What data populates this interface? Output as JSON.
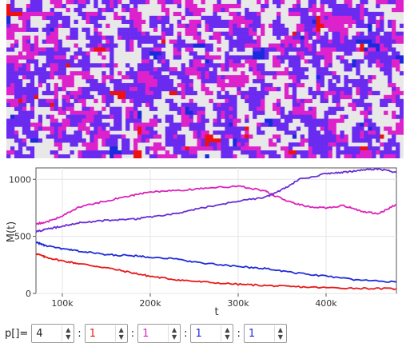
{
  "lattice": {
    "cols": 100,
    "rows": 40,
    "palette": {
      "empty": "#e8e8e8",
      "species_0": "#ee1111",
      "species_1": "#dd22cc",
      "species_2": "#1a2bdd",
      "species_3": "#6a2bf0"
    }
  },
  "chart_data": {
    "type": "line",
    "xlabel": "t",
    "ylabel": "M(t)",
    "xlim": [
      70000,
      480000
    ],
    "ylim": [
      0,
      1100
    ],
    "xticks": [
      100000,
      200000,
      300000,
      400000
    ],
    "xtick_labels": [
      "100k",
      "200k",
      "300k",
      "400k"
    ],
    "yticks": [
      0,
      500,
      1000
    ],
    "ytick_labels": [
      "0",
      "500",
      "1000"
    ],
    "grid": true,
    "series": [
      {
        "color": "#e81818",
        "x": [
          70000,
          80000,
          100000,
          120000,
          150000,
          180000,
          200000,
          230000,
          260000,
          300000,
          330000,
          360000,
          400000,
          440000,
          480000
        ],
        "y": [
          350,
          320,
          285,
          260,
          225,
          180,
          150,
          120,
          100,
          80,
          70,
          60,
          50,
          45,
          40
        ]
      },
      {
        "color": "#1e2bd8",
        "x": [
          70000,
          80000,
          100000,
          120000,
          150000,
          180000,
          200000,
          230000,
          260000,
          300000,
          330000,
          360000,
          400000,
          440000,
          480000
        ],
        "y": [
          450,
          420,
          390,
          370,
          340,
          330,
          320,
          300,
          265,
          235,
          220,
          185,
          150,
          115,
          100
        ]
      },
      {
        "color": "#dd22bb",
        "x": [
          70000,
          80000,
          100000,
          120000,
          150000,
          180000,
          200000,
          230000,
          260000,
          300000,
          330000,
          340000,
          360000,
          380000,
          400000,
          420000,
          440000,
          460000,
          480000
        ],
        "y": [
          610,
          620,
          680,
          760,
          810,
          860,
          890,
          900,
          920,
          940,
          900,
          860,
          800,
          760,
          750,
          770,
          720,
          700,
          780
        ]
      },
      {
        "color": "#6b2ed6",
        "x": [
          70000,
          80000,
          100000,
          120000,
          150000,
          180000,
          200000,
          230000,
          260000,
          300000,
          330000,
          350000,
          370000,
          400000,
          420000,
          440000,
          460000,
          480000
        ],
        "y": [
          540,
          560,
          590,
          620,
          640,
          650,
          670,
          700,
          750,
          810,
          840,
          910,
          1000,
          1050,
          1060,
          1080,
          1090,
          1060
        ]
      }
    ]
  },
  "controls": {
    "label": "p[]=",
    "separator": ":",
    "inputs": [
      {
        "value": "4",
        "color": "#222222"
      },
      {
        "value": "1",
        "color": "#e81818"
      },
      {
        "value": "1",
        "color": "#dd22bb"
      },
      {
        "value": "1",
        "color": "#1e2bd8"
      },
      {
        "value": "1",
        "color": "#1e2bd8"
      }
    ]
  }
}
